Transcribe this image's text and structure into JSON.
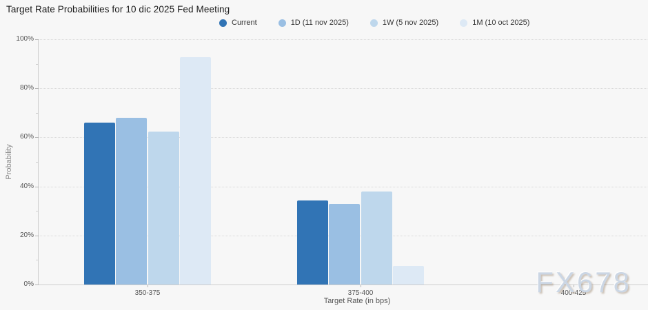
{
  "watermark": "FX678",
  "chart_data": {
    "type": "bar",
    "title": "Target Rate Probabilities for 10 dic 2025 Fed Meeting",
    "xlabel": "Target Rate (in bps)",
    "ylabel": "Probability",
    "ylim": [
      0,
      100
    ],
    "yticks": [
      0,
      20,
      40,
      60,
      80,
      100
    ],
    "ytick_suffix": "%",
    "grid": "dotted-horizontal",
    "legend_position": "top",
    "categories": [
      "350-375",
      "375-400",
      "400-425"
    ],
    "series": [
      {
        "name": "Current",
        "color": "#3174b5",
        "values": [
          66.0,
          34.4,
          0
        ]
      },
      {
        "name": "1D (11 nov 2025)",
        "color": "#9abfe3",
        "values": [
          67.9,
          33.0,
          0
        ]
      },
      {
        "name": "1W (5 nov 2025)",
        "color": "#bed7ec",
        "values": [
          62.3,
          37.8,
          0
        ]
      },
      {
        "name": "1M (10 oct 2025)",
        "color": "#dde9f5",
        "values": [
          92.7,
          7.6,
          0
        ]
      }
    ]
  }
}
